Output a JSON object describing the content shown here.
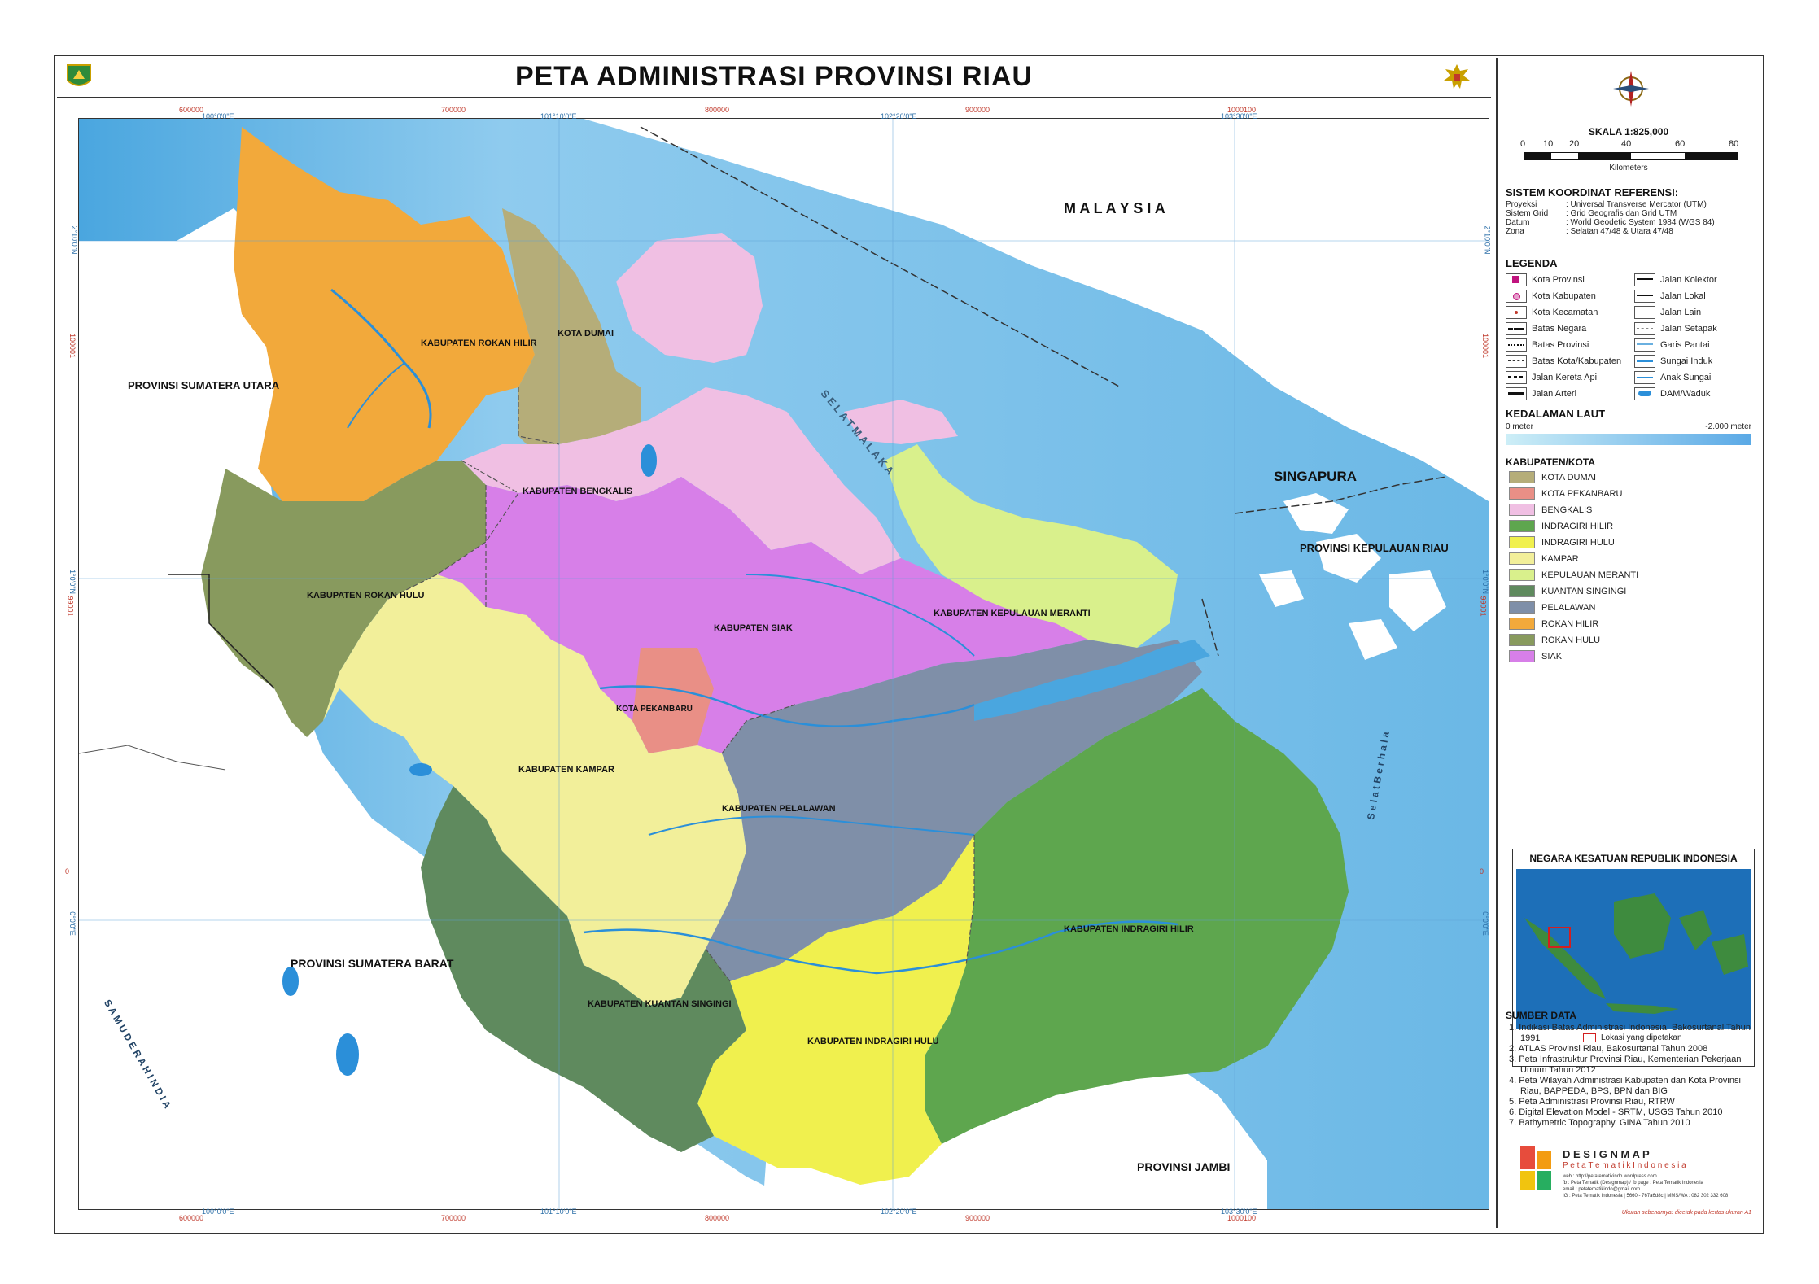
{
  "title": "PETA ADMINISTRASI PROVINSI RIAU",
  "map": {
    "labels": {
      "malaysia": "M A L A Y S I A",
      "singapura": "SINGAPURA",
      "kepri": "PROVINSI KEPULAUAN RIAU",
      "sumut": "PROVINSI SUMATERA UTARA",
      "sumbar": "PROVINSI SUMATERA BARAT",
      "jambi": "PROVINSI JAMBI",
      "selat_malaka": "S E L A T   M A L A K A",
      "samudera": "S A M U D E R A   H I N D I A",
      "selat_berhala": "S e l a t   B e r h a l a"
    },
    "regions": {
      "rokan_hilir": "KABUPATEN ROKAN HILIR",
      "dumai": "KOTA DUMAI",
      "bengkalis": "KABUPATEN BENGKALIS",
      "rokan_hulu": "KABUPATEN ROKAN HULU",
      "siak": "KABUPATEN SIAK",
      "meranti": "KABUPATEN KEPULAUAN MERANTI",
      "pekanbaru": "KOTA PEKANBARU",
      "kampar": "KABUPATEN KAMPAR",
      "pelalawan": "KABUPATEN PELALAWAN",
      "inhil": "KABUPATEN INDRAGIRI HILIR",
      "kuansing": "KABUPATEN KUANTAN SINGINGI",
      "inhu": "KABUPATEN INDRAGIRI HULU"
    },
    "coords_top": [
      "600000",
      "100°0'0\"E",
      "700000",
      "101°10'0\"E",
      "800000",
      "102°20'0\"E",
      "900000",
      "1000100",
      "103°30'0\"E"
    ],
    "coords_bottom": [
      "600000",
      "100°0'0\"E",
      "700000",
      "101°10'0\"E",
      "800000",
      "102°20'0\"E",
      "900000",
      "1000100",
      "103°30'0\"E"
    ],
    "coords_left": [
      "2°10'0\"N",
      "100001",
      "1°0'0\"N",
      "99001",
      "0",
      "0°0'0\"E"
    ],
    "coords_right": [
      "2°10'0\"N",
      "100001",
      "1°0'0\"N",
      "99001",
      "0",
      "0°0'0\"E"
    ]
  },
  "sidebar": {
    "scale_title": "SKALA 1:825,000",
    "scale_ticks": [
      "0",
      "10",
      "20",
      "40",
      "60",
      "80"
    ],
    "scale_unit": "Kilometers",
    "ref_title": "SISTEM KOORDINAT REFERENSI:",
    "ref_rows": [
      {
        "k": "Proyeksi",
        "v": ": Universal Transverse Mercator (UTM)"
      },
      {
        "k": "Sistem Grid",
        "v": ": Grid Geografis dan Grid UTM"
      },
      {
        "k": "Datum",
        "v": ": World Geodetic System 1984 (WGS 84)"
      },
      {
        "k": "Zona",
        "v": ": Selatan 47/48 & Utara 47/48"
      }
    ],
    "legend_title": "LEGENDA",
    "legend_left": [
      "Kota Provinsi",
      "Kota Kabupaten",
      "Kota Kecamatan",
      "Batas Negara",
      "Batas Provinsi",
      "Batas Kota/Kabupaten",
      "Jalan Kereta Api",
      "Jalan Arteri"
    ],
    "legend_right": [
      "Jalan Kolektor",
      "Jalan Lokal",
      "Jalan Lain",
      "Jalan Setapak",
      "Garis Pantai",
      "Sungai Induk",
      "Anak Sungai",
      "DAM/Waduk"
    ],
    "depth_title": "KEDALAMAN LAUT",
    "depth_min": "0 meter",
    "depth_max": "-2.000 meter",
    "kab_title": "KABUPATEN/KOTA",
    "kab_items": [
      {
        "label": "KOTA DUMAI",
        "color": "#b5ad79"
      },
      {
        "label": "KOTA PEKANBARU",
        "color": "#e98f86"
      },
      {
        "label": "BENGKALIS",
        "color": "#f0bfe3"
      },
      {
        "label": "INDRAGIRI HILIR",
        "color": "#5ea64e"
      },
      {
        "label": "INDRAGIRI HULU",
        "color": "#f0f04e"
      },
      {
        "label": "KAMPAR",
        "color": "#f2ef9a"
      },
      {
        "label": "KEPULAUAN MERANTI",
        "color": "#d9f08c"
      },
      {
        "label": "KUANTAN SINGINGI",
        "color": "#5f8a5e"
      },
      {
        "label": "PELALAWAN",
        "color": "#7f8fa8"
      },
      {
        "label": "ROKAN HILIR",
        "color": "#f2a93b"
      },
      {
        "label": "ROKAN HULU",
        "color": "#889a5e"
      },
      {
        "label": "SIAK",
        "color": "#d77fe8"
      }
    ],
    "inset_title": "NEGARA KESATUAN REPUBLIK INDONESIA",
    "inset_caption": "Lokasi yang dipetakan",
    "source_title": "SUMBER DATA",
    "sources": [
      "1. Indikasi Batas Administrasi Indonesia, Bakosurtanal Tahun 1991",
      "2. ATLAS Provinsi Riau, Bakosurtanal Tahun 2008",
      "3. Peta Infrastruktur Provinsi Riau, Kementerian Pekerjaan Umum Tahun 2012",
      "4. Peta Wilayah Administrasi Kabupaten dan Kota Provinsi Riau, BAPPEDA, BPS, BPN dan BIG",
      "5. Peta Administrasi Provinsi Riau, RTRW",
      "6. Digital Elevation Model - SRTM, USGS Tahun 2010",
      "7. Bathymetric Topography, GINA Tahun 2010"
    ],
    "brand": "D E S I G N M A P",
    "brand_sub": "P e t a   T e m a t i k   I n d o n e s i a",
    "brand_lines": [
      "web : http://petatematikindo.wordpress.com",
      "fb : Peta Tematik (Designmap) / fb page : Peta Tematik Indonesia",
      "email : petatematikindo@gmail.com",
      "IG : Peta Tematik Indonesia | 5660 - 767a6d8c | MMS/WA : 082 302 332 608"
    ],
    "footnote": "Ukuran sebenarnya: dicetak pada kertas ukuran A1"
  },
  "colors": {
    "sea": "#8cc8ec",
    "sea_light": "#c8e4f3",
    "outside_land": "#ffffff"
  }
}
